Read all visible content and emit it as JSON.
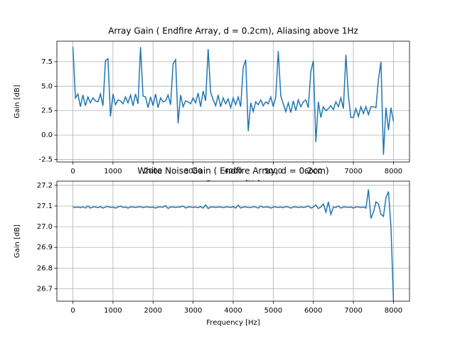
{
  "chart_data": [
    {
      "type": "line",
      "title": "Array Gain ( Endfire Array, d = 0.2cm), Aliasing above 1Hz",
      "xlabel": "Frequency [Hz]",
      "ylabel": "Gain [dB]",
      "color": "#1f77b4",
      "grid": true,
      "x": [
        0,
        62.5,
        125,
        187.5,
        250,
        312.5,
        375,
        437.5,
        500,
        562.5,
        625,
        687.5,
        750,
        812.5,
        875,
        937.5,
        1000,
        1062.5,
        1125,
        1187.5,
        1250,
        1312.5,
        1375,
        1437.5,
        1500,
        1562.5,
        1625,
        1687.5,
        1750,
        1812.5,
        1875,
        1937.5,
        2000,
        2062.5,
        2125,
        2187.5,
        2250,
        2312.5,
        2375,
        2437.5,
        2500,
        2562.5,
        2625,
        2687.5,
        2750,
        2812.5,
        2875,
        2937.5,
        3000,
        3062.5,
        3125,
        3187.5,
        3250,
        3312.5,
        3375,
        3437.5,
        3500,
        3562.5,
        3625,
        3687.5,
        3750,
        3812.5,
        3875,
        3937.5,
        4000,
        4062.5,
        4125,
        4187.5,
        4250,
        4312.5,
        4375,
        4437.5,
        4500,
        4562.5,
        4625,
        4687.5,
        4750,
        4812.5,
        4875,
        4937.5,
        5000,
        5062.5,
        5125,
        5187.5,
        5250,
        5312.5,
        5375,
        5437.5,
        5500,
        5562.5,
        5625,
        5687.5,
        5750,
        5812.5,
        5875,
        5937.5,
        6000,
        6062.5,
        6125,
        6187.5,
        6250,
        6312.5,
        6375,
        6437.5,
        6500,
        6562.5,
        6625,
        6687.5,
        6750,
        6812.5,
        6875,
        6937.5,
        7000,
        7062.5,
        7125,
        7187.5,
        7250,
        7312.5,
        7375,
        7437.5,
        7500,
        7562.5,
        7625,
        7687.5,
        7750,
        7812.5,
        7875,
        7937.5,
        8000
      ],
      "values": [
        9.0,
        3.8,
        4.2,
        2.9,
        4.1,
        3.0,
        3.9,
        3.3,
        3.8,
        3.5,
        3.4,
        4.2,
        3.0,
        7.6,
        7.8,
        1.9,
        4.2,
        3.1,
        3.6,
        3.5,
        3.2,
        3.9,
        3.3,
        4.1,
        3.0,
        4.2,
        3.2,
        9.0,
        4.0,
        3.9,
        2.8,
        3.9,
        3.0,
        4.2,
        2.8,
        3.8,
        3.4,
        3.5,
        4.1,
        3.1,
        7.3,
        7.7,
        1.2,
        4.1,
        2.9,
        3.5,
        3.4,
        3.2,
        3.8,
        3.3,
        4.3,
        2.9,
        4.5,
        3.5,
        8.8,
        4.4,
        3.6,
        3.0,
        4.1,
        2.9,
        3.8,
        3.2,
        3.7,
        2.8,
        3.8,
        3.1,
        3.9,
        2.9,
        6.9,
        7.7,
        0.4,
        3.3,
        2.4,
        3.4,
        3.1,
        3.6,
        3.0,
        3.4,
        3.2,
        3.9,
        2.9,
        3.9,
        8.6,
        4.0,
        3.2,
        2.4,
        3.3,
        2.3,
        3.5,
        2.5,
        3.6,
        2.9,
        3.4,
        3.6,
        2.8,
        6.5,
        7.6,
        -0.7,
        3.4,
        1.8,
        2.9,
        2.5,
        2.7,
        3.0,
        2.6,
        3.4,
        2.9,
        3.8,
        2.7,
        8.2,
        4.0,
        1.8,
        1.8,
        2.7,
        1.9,
        2.9,
        2.2,
        2.9,
        2.1,
        2.9,
        2.9,
        2.8,
        5.7,
        7.5,
        -2.0,
        2.8,
        0.5,
        2.8,
        1.4
      ],
      "xlim": [
        -400,
        8400
      ],
      "xticks": [
        0,
        1000,
        2000,
        3000,
        4000,
        5000,
        6000,
        7000,
        8000
      ],
      "ylim": [
        -2.75,
        9.6
      ],
      "yticks": [
        -2.5,
        {
          "value": 0,
          "label": "0.0"
        },
        2.5,
        {
          "value": 5,
          "label": "5.0"
        },
        7.5
      ]
    },
    {
      "type": "line",
      "title": "White Noise Gain ( Endfire Array, d = 0.2cm)",
      "xlabel": "Frequency [Hz]",
      "ylabel": "Gain [dB]",
      "color": "#1f77b4",
      "grid": true,
      "x": [
        0,
        62.5,
        125,
        187.5,
        250,
        312.5,
        375,
        437.5,
        500,
        562.5,
        625,
        687.5,
        750,
        812.5,
        875,
        937.5,
        1000,
        1062.5,
        1125,
        1187.5,
        1250,
        1312.5,
        1375,
        1437.5,
        1500,
        1562.5,
        1625,
        1687.5,
        1750,
        1812.5,
        1875,
        1937.5,
        2000,
        2062.5,
        2125,
        2187.5,
        2250,
        2312.5,
        2375,
        2437.5,
        2500,
        2562.5,
        2625,
        2687.5,
        2750,
        2812.5,
        2875,
        2937.5,
        3000,
        3062.5,
        3125,
        3187.5,
        3250,
        3312.5,
        3375,
        3437.5,
        3500,
        3562.5,
        3625,
        3687.5,
        3750,
        3812.5,
        3875,
        3937.5,
        4000,
        4062.5,
        4125,
        4187.5,
        4250,
        4312.5,
        4375,
        4437.5,
        4500,
        4562.5,
        4625,
        4687.5,
        4750,
        4812.5,
        4875,
        4937.5,
        5000,
        5062.5,
        5125,
        5187.5,
        5250,
        5312.5,
        5375,
        5437.5,
        5500,
        5562.5,
        5625,
        5687.5,
        5750,
        5812.5,
        5875,
        5937.5,
        6000,
        6062.5,
        6125,
        6187.5,
        6250,
        6312.5,
        6375,
        6437.5,
        6500,
        6562.5,
        6625,
        6687.5,
        6750,
        6812.5,
        6875,
        6937.5,
        7000,
        7062.5,
        7125,
        7187.5,
        7250,
        7312.5,
        7375,
        7437.5,
        7500,
        7562.5,
        7625,
        7687.5,
        7750,
        7812.5,
        7875,
        7937.5,
        8000
      ],
      "values": [
        27.095,
        27.093,
        27.095,
        27.092,
        27.096,
        27.09,
        27.1,
        27.09,
        27.095,
        27.095,
        27.092,
        27.097,
        27.09,
        27.095,
        27.098,
        27.093,
        27.095,
        27.09,
        27.095,
        27.1,
        27.093,
        27.095,
        27.09,
        27.095,
        27.095,
        27.093,
        27.095,
        27.097,
        27.092,
        27.095,
        27.095,
        27.093,
        27.095,
        27.09,
        27.095,
        27.095,
        27.094,
        27.102,
        27.088,
        27.095,
        27.095,
        27.093,
        27.095,
        27.095,
        27.1,
        27.09,
        27.095,
        27.095,
        27.093,
        27.095,
        27.092,
        27.097,
        27.09,
        27.105,
        27.088,
        27.095,
        27.095,
        27.093,
        27.095,
        27.095,
        27.092,
        27.095,
        27.095,
        27.093,
        27.097,
        27.09,
        27.104,
        27.09,
        27.095,
        27.095,
        27.093,
        27.092,
        27.097,
        27.095,
        27.09,
        27.1,
        27.093,
        27.095,
        27.095,
        27.09,
        27.095,
        27.095,
        27.093,
        27.095,
        27.092,
        27.097,
        27.095,
        27.09,
        27.095,
        27.095,
        27.093,
        27.095,
        27.093,
        27.095,
        27.1,
        27.09,
        27.095,
        27.105,
        27.088,
        27.095,
        27.11,
        27.07,
        27.12,
        27.06,
        27.095,
        27.093,
        27.1,
        27.09,
        27.095,
        27.095,
        27.093,
        27.095,
        27.09,
        27.095,
        27.095,
        27.093,
        27.095,
        27.09,
        27.18,
        27.04,
        27.07,
        27.12,
        27.11,
        27.06,
        27.05,
        27.14,
        27.17,
        27.0,
        26.64
      ],
      "xlim": [
        -400,
        8400
      ],
      "xticks": [
        0,
        1000,
        2000,
        3000,
        4000,
        5000,
        6000,
        7000,
        8000
      ],
      "ylim": [
        26.64,
        27.22
      ],
      "yticks": [
        26.7,
        26.8,
        26.9,
        {
          "value": 27,
          "label": "27.0"
        },
        27.1,
        27.2
      ]
    }
  ]
}
